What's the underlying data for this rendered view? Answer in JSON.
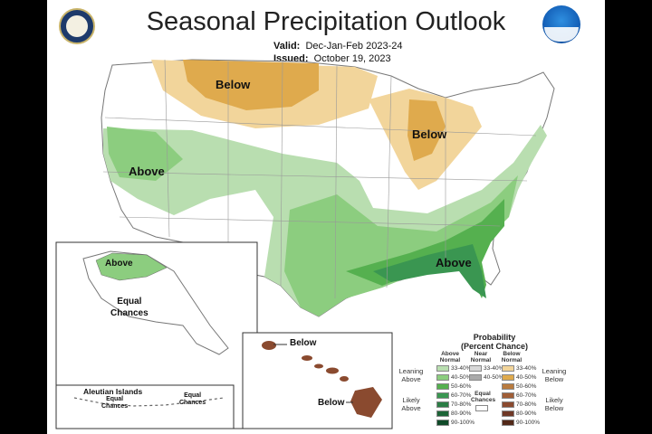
{
  "header": {
    "title": "Seasonal Precipitation Outlook",
    "valid_label": "Valid:",
    "valid_value": "Dec-Jan-Feb 2023-24",
    "issued_label": "Issued:",
    "issued_value": "October 19, 2023"
  },
  "logos": {
    "left": "department-of-commerce-seal",
    "right": "noaa-logo"
  },
  "map_labels": {
    "north_below": "Below",
    "great_lakes_below": "Below",
    "west_above": "Above",
    "southeast_above": "Above"
  },
  "alaska": {
    "above": "Above",
    "equal_chances": "Equal\nChances",
    "aleutian_title": "Aleutian Islands",
    "aleutian_equal_1": "Equal\nChances",
    "aleutian_equal_2": "Equal\nChances"
  },
  "hawaii": {
    "below_1": "Below",
    "below_2": "Below"
  },
  "legend": {
    "title": "Probability\n(Percent Chance)",
    "col_above": "Above\nNormal",
    "col_near": "Near\nNormal",
    "col_below": "Below\nNormal",
    "leaning_above": "Leaning\nAbove",
    "likely_above": "Likely\nAbove",
    "leaning_below": "Leaning\nBelow",
    "likely_below": "Likely\nBelow",
    "equal_chances": "Equal\nChances",
    "above_rows": [
      {
        "range": "33-40%",
        "color": "#b9deb0"
      },
      {
        "range": "40-50%",
        "color": "#8ccd7f"
      },
      {
        "range": "50-60%",
        "color": "#55b04f"
      },
      {
        "range": "60-70%",
        "color": "#3a9651"
      },
      {
        "range": "70-80%",
        "color": "#2b7d45"
      },
      {
        "range": "80-90%",
        "color": "#1c6336"
      },
      {
        "range": "90-100%",
        "color": "#0f4a28"
      }
    ],
    "near_rows": [
      {
        "range": "33-40%",
        "color": "#d8d8d8"
      },
      {
        "range": "40-50%",
        "color": "#a9a9a9"
      }
    ],
    "below_rows": [
      {
        "range": "33-40%",
        "color": "#f2d59b"
      },
      {
        "range": "40-50%",
        "color": "#dfaa4d"
      },
      {
        "range": "50-60%",
        "color": "#b97b3f"
      },
      {
        "range": "60-70%",
        "color": "#a05e36"
      },
      {
        "range": "70-80%",
        "color": "#8a4a2f"
      },
      {
        "range": "80-90%",
        "color": "#6f3826"
      },
      {
        "range": "90-100%",
        "color": "#522818"
      }
    ]
  }
}
